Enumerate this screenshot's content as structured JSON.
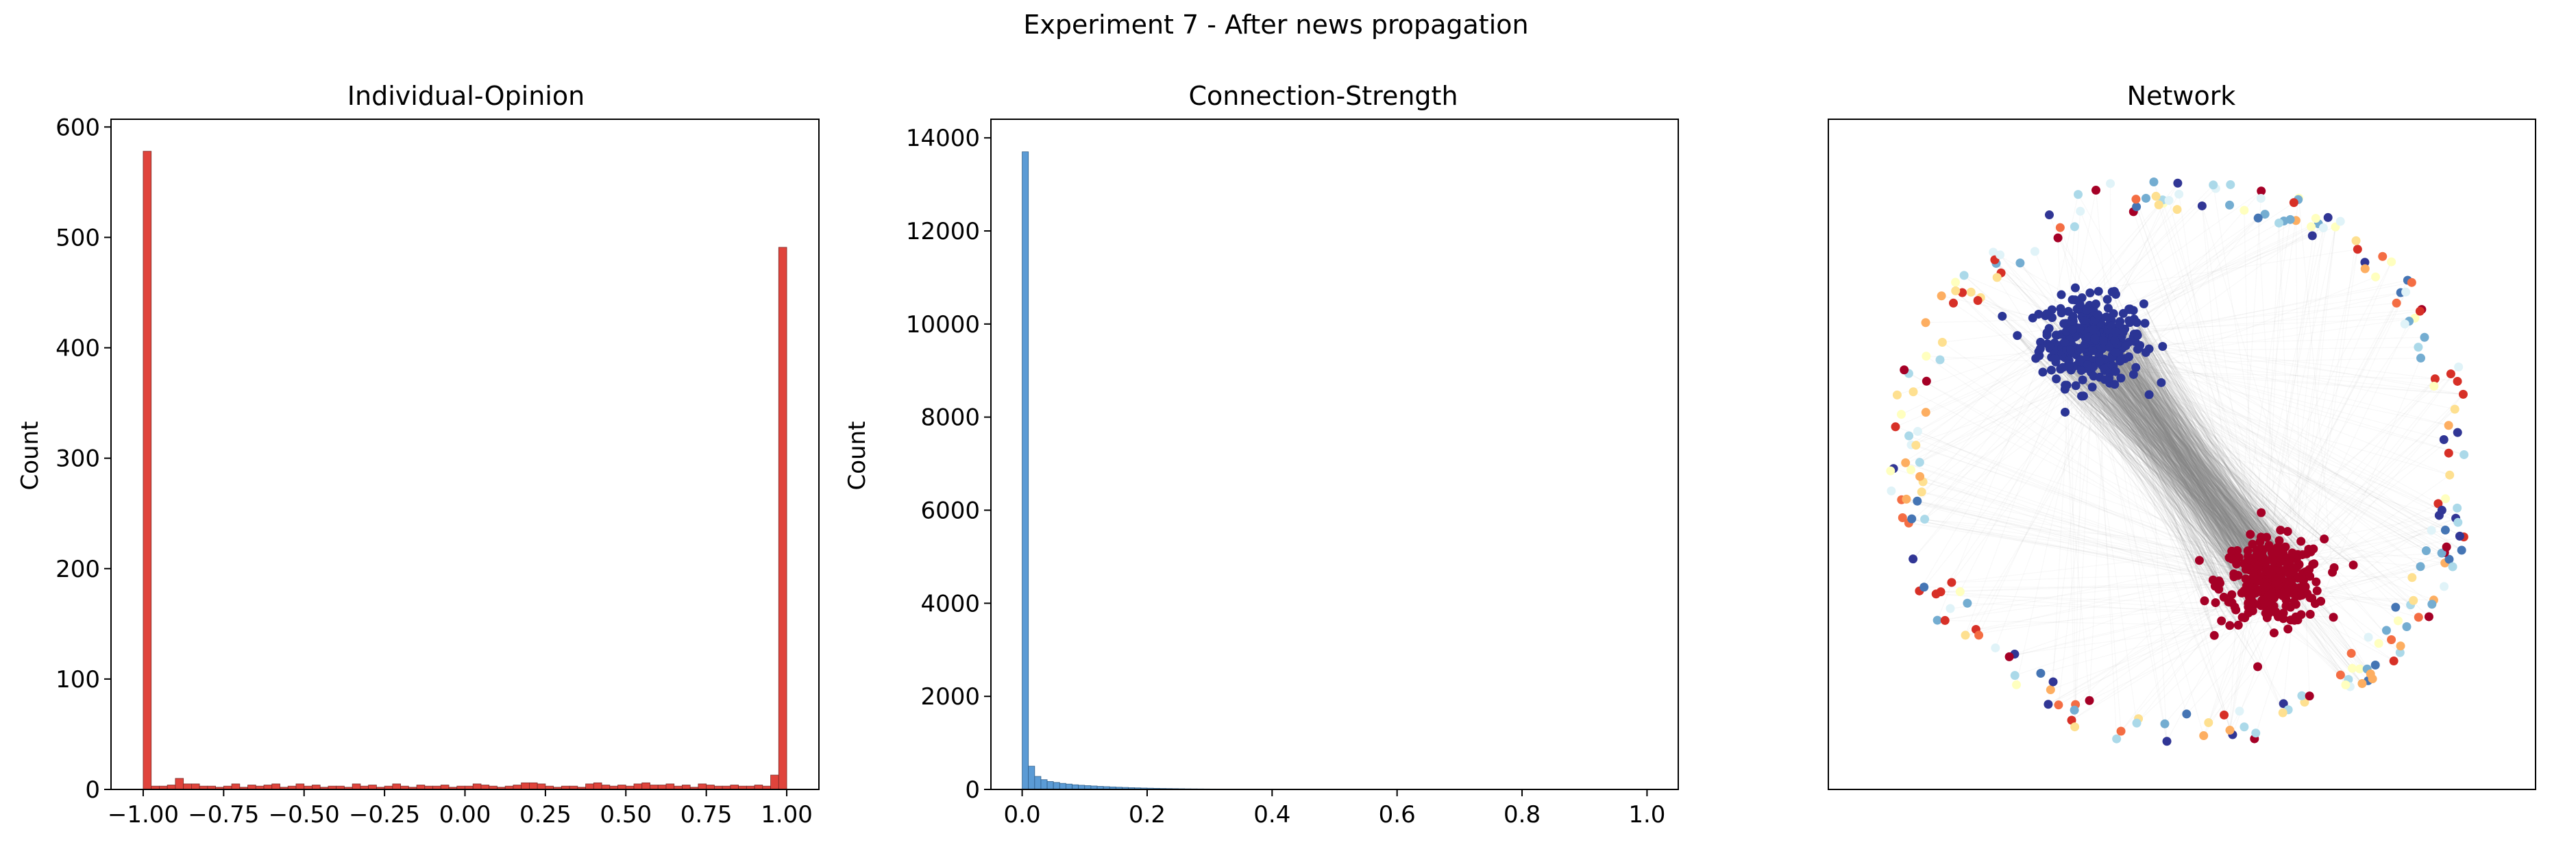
{
  "figure": {
    "suptitle": "Experiment 7 - After news propagation"
  },
  "chart_data": [
    {
      "type": "bar",
      "title": "Individual-Opinion",
      "xlabel": "",
      "ylabel": "Count",
      "xlim": [
        -1.1,
        1.1
      ],
      "ylim": [
        0,
        607
      ],
      "xticks": [
        -1.0,
        -0.75,
        -0.5,
        -0.25,
        0.0,
        0.25,
        0.5,
        0.75,
        1.0
      ],
      "xtick_labels": [
        "−1.00",
        "−0.75",
        "−0.50",
        "−0.25",
        "0.00",
        "0.25",
        "0.50",
        "0.75",
        "1.00"
      ],
      "yticks": [
        0,
        100,
        200,
        300,
        400,
        500,
        600
      ],
      "ytick_labels": [
        "0",
        "100",
        "200",
        "300",
        "400",
        "500",
        "600"
      ],
      "bin_start": -1.0,
      "bin_width": 0.025,
      "color": "#e0443c",
      "edge_color": "#7a2a26",
      "values": [
        578,
        3,
        3,
        4,
        10,
        5,
        5,
        3,
        3,
        2,
        3,
        5,
        2,
        4,
        3,
        4,
        5,
        2,
        3,
        5,
        3,
        4,
        2,
        3,
        3,
        2,
        5,
        3,
        4,
        2,
        3,
        5,
        3,
        2,
        4,
        3,
        3,
        4,
        2,
        3,
        3,
        5,
        4,
        3,
        2,
        3,
        4,
        6,
        6,
        5,
        3,
        2,
        3,
        3,
        2,
        5,
        6,
        4,
        3,
        4,
        3,
        5,
        6,
        4,
        4,
        5,
        3,
        4,
        2,
        5,
        4,
        3,
        3,
        4,
        3,
        3,
        4,
        3,
        13,
        491
      ]
    },
    {
      "type": "bar",
      "title": "Connection-Strength",
      "xlabel": "",
      "ylabel": "Count",
      "xlim": [
        -0.05,
        1.05
      ],
      "ylim": [
        0,
        14400
      ],
      "xticks": [
        0.0,
        0.2,
        0.4,
        0.6,
        0.8,
        1.0
      ],
      "xtick_labels": [
        "0.0",
        "0.2",
        "0.4",
        "0.6",
        "0.8",
        "1.0"
      ],
      "yticks": [
        0,
        2000,
        4000,
        6000,
        8000,
        10000,
        12000,
        14000
      ],
      "ytick_labels": [
        "0",
        "2000",
        "4000",
        "6000",
        "8000",
        "10000",
        "12000",
        "14000"
      ],
      "bin_start": 0.0,
      "bin_width": 0.01,
      "color": "#5b9bd5",
      "edge_color": "#2f5f8a",
      "values": [
        13700,
        500,
        280,
        210,
        170,
        150,
        130,
        115,
        100,
        90,
        82,
        74,
        66,
        60,
        54,
        48,
        43,
        38,
        34,
        30,
        27,
        24,
        21,
        19,
        17,
        15,
        13,
        12,
        11,
        10,
        9,
        8,
        7,
        6,
        6,
        5,
        5,
        4,
        4,
        3,
        3,
        3,
        2,
        2,
        2,
        2,
        2,
        1,
        1,
        1
      ]
    },
    {
      "type": "scatter",
      "title": "Network",
      "xlabel": "",
      "ylabel": "",
      "clusters": [
        {
          "color": "#2b3595",
          "center": [
            -0.3,
            0.4
          ],
          "count": 320
        },
        {
          "color": "#a50026",
          "center": [
            0.3,
            -0.4
          ],
          "count": 320
        }
      ],
      "ring": {
        "count": 230,
        "colors": [
          "#a50026",
          "#d73027",
          "#f46d43",
          "#fdae61",
          "#fee090",
          "#ffffbf",
          "#e0f3f8",
          "#abd9e9",
          "#74add1",
          "#4575b4",
          "#313695"
        ]
      },
      "edge_color": "#808080"
    }
  ]
}
